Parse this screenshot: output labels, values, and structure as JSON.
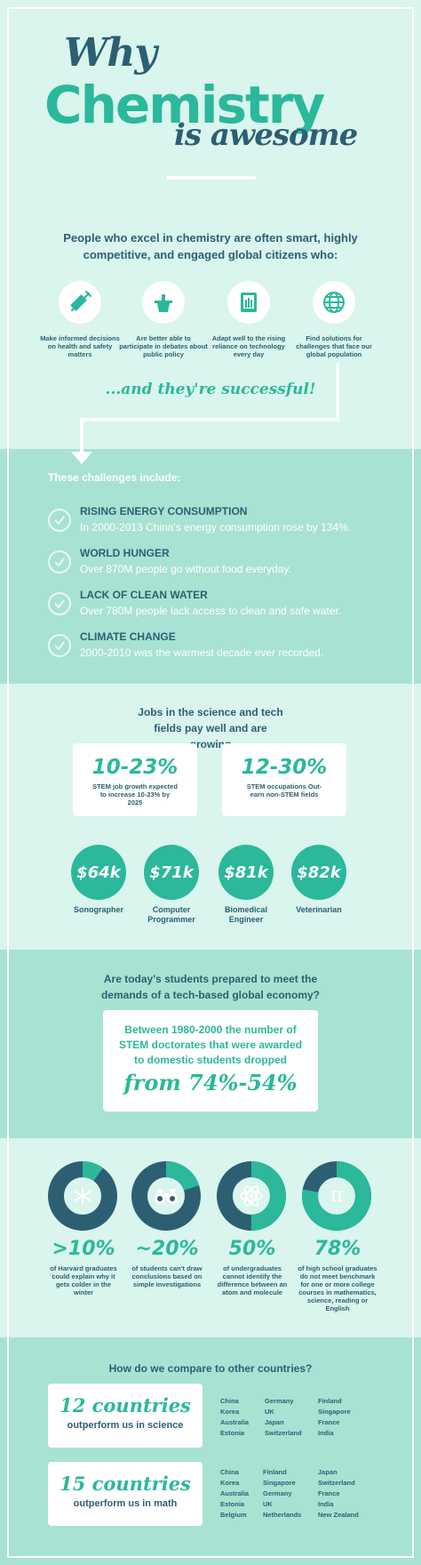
{
  "title": {
    "line1": "Why",
    "line2": "Chemistry",
    "line3": "is awesome"
  },
  "intro": "People who excel in chemistry are often smart, highly competitive, and engaged global citizens who:",
  "traits": [
    {
      "icon": "syringe-icon",
      "text": "Make informed decisions on health and safety matters"
    },
    {
      "icon": "podium-icon",
      "text": "Are better able to participate in debates about public policy"
    },
    {
      "icon": "hand-device-icon",
      "text": "Adapt well to the rising reliance on technology every day"
    },
    {
      "icon": "globe-icon",
      "text": "Find solutions for challenges that face our global population"
    }
  ],
  "successful": "...and they're successful!",
  "challenges": {
    "heading": "These challenges include:",
    "items": [
      {
        "title": "RISING ENERGY CONSUMPTION",
        "text": "In 2000-2013 China's energy consumption rose by 134%."
      },
      {
        "title": "WORLD HUNGER",
        "text": "Over 870M people go without food everyday."
      },
      {
        "title": "LACK OF CLEAN WATER",
        "text": "Over 780M people lack access to clean and safe water."
      },
      {
        "title": "CLIMATE CHANGE",
        "text": "2000-2010 was the warmest decade ever recorded."
      }
    ]
  },
  "jobs": {
    "heading": "Jobs in the science and tech fields pay well and are growing",
    "stats": [
      {
        "big": "10-23%",
        "small": "STEM job growth expected to increase 10-23% by 2025"
      },
      {
        "big": "12-30%",
        "small": "STEM occupations Out-earn non-STEM fields"
      }
    ],
    "salaries": [
      {
        "value": "$64k",
        "label": "Sonographer"
      },
      {
        "value": "$71k",
        "label": "Computer Programmer"
      },
      {
        "value": "$81k",
        "label": "Biomedical Engineer"
      },
      {
        "value": "$82k",
        "label": "Veterinarian"
      }
    ]
  },
  "prepared": {
    "heading": "Are today's students prepared to meet the demands of a tech-based global economy?",
    "text": "Between 1980-2000 the number of STEM doctorates that were awarded to domestic students dropped",
    "big": "from 74%-54%"
  },
  "donuts": [
    {
      "pct": ">10%",
      "fraction": 0.1,
      "icon": "snowflake-icon",
      "caption": "of Harvard graduates could explain why it gets colder in the winter"
    },
    {
      "pct": "~20%",
      "fraction": 0.2,
      "icon": "binoculars-icon",
      "caption": "of students can't draw conclusions based on simple investigations"
    },
    {
      "pct": "50%",
      "fraction": 0.5,
      "icon": "atom-icon",
      "caption": "of undergraduates cannot identify the difference between an atom and molecule"
    },
    {
      "pct": "78%",
      "fraction": 0.78,
      "icon": "pi-icon",
      "caption": "of high school graduates do not meet benchmark for one or more college courses in mathematics, science, reading or English"
    }
  ],
  "compare": {
    "heading": "How do we compare to other countries?",
    "science": {
      "big": "12 countries",
      "small": "outperform us in science",
      "columns": [
        [
          "China",
          "Korea",
          "Australia",
          "Estonia"
        ],
        [
          "Germany",
          "UK",
          "Japan",
          "Switzerland"
        ],
        [
          "Finland",
          "Singapore",
          "France",
          "India"
        ]
      ]
    },
    "math": {
      "big": "15 countries",
      "small": "outperform us in math",
      "columns": [
        [
          "China",
          "Korea",
          "Australia",
          "Estonia",
          "Belgium"
        ],
        [
          "Finland",
          "Singapore",
          "Germany",
          "UK",
          "Netherlands"
        ],
        [
          "Japan",
          "Switzerland",
          "France",
          "India",
          "New Zealand"
        ]
      ]
    }
  },
  "colors": {
    "teal": "#2bb89b",
    "navy": "#2d5f73",
    "mint": "#d9f5ee",
    "band": "#a8e2d3"
  }
}
